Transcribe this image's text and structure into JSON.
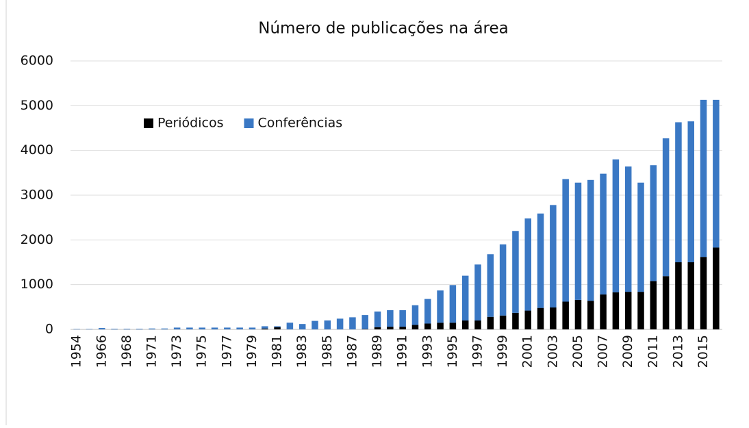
{
  "chart_data": {
    "type": "stacked_bar",
    "title": "Número de publicações na área",
    "categories": [
      "1954",
      null,
      "1966",
      null,
      "1968",
      null,
      "1971",
      null,
      "1973",
      null,
      "1975",
      null,
      "1977",
      null,
      "1979",
      null,
      "1981",
      null,
      "1983",
      null,
      "1985",
      null,
      "1987",
      null,
      "1989",
      null,
      "1991",
      null,
      "1993",
      null,
      "1995",
      null,
      "1997",
      null,
      "1999",
      null,
      "2001",
      null,
      "2003",
      null,
      "2005",
      null,
      "2007",
      null,
      "2009",
      null,
      "2011",
      null,
      "2013",
      null,
      "2015",
      null
    ],
    "series": [
      {
        "name": "Periódicos",
        "color": "#000000",
        "values": [
          0,
          0,
          0,
          0,
          0,
          0,
          0,
          0,
          0,
          0,
          0,
          0,
          0,
          0,
          0,
          20,
          50,
          0,
          0,
          0,
          0,
          0,
          0,
          10,
          50,
          60,
          60,
          100,
          130,
          150,
          150,
          200,
          200,
          280,
          310,
          370,
          420,
          480,
          490,
          620,
          660,
          640,
          780,
          830,
          840,
          840,
          1080,
          1190,
          1500,
          1500,
          1620,
          1830
        ]
      },
      {
        "name": "Conferências",
        "color": "#3a78c4",
        "values": [
          10,
          10,
          30,
          15,
          15,
          15,
          20,
          20,
          40,
          40,
          40,
          40,
          40,
          40,
          40,
          50,
          20,
          150,
          120,
          190,
          200,
          240,
          270,
          310,
          350,
          370,
          370,
          440,
          550,
          720,
          840,
          1000,
          1250,
          1400,
          1590,
          1830,
          2060,
          2110,
          2290,
          2740,
          2620,
          2700,
          2700,
          2970,
          2800,
          2440,
          2590,
          3080,
          3130,
          3150,
          3510,
          3300
        ]
      }
    ],
    "ylim": [
      0,
      6000
    ],
    "yticks": [
      0,
      1000,
      2000,
      3000,
      4000,
      5000,
      6000
    ],
    "grid": true,
    "legend": "top-left"
  }
}
